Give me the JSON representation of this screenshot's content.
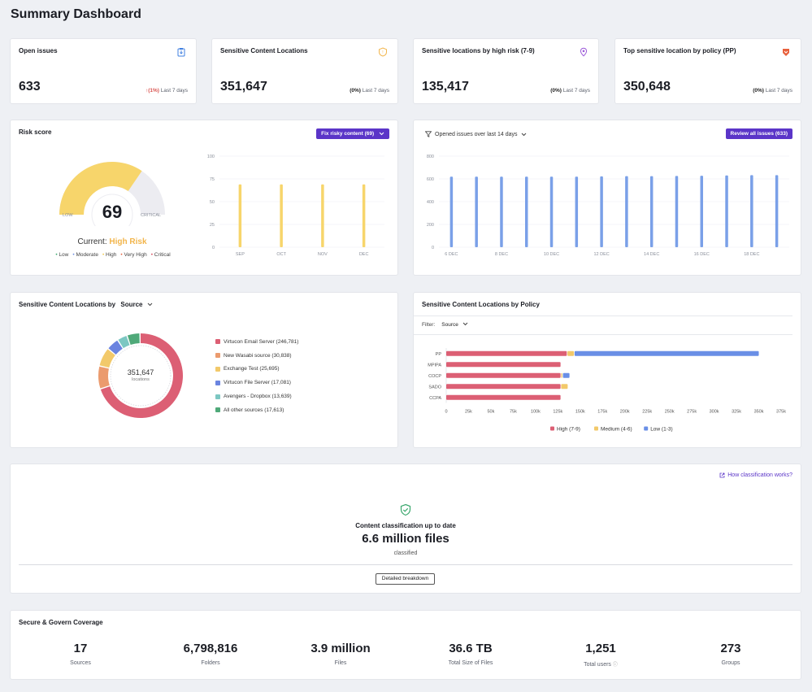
{
  "page": {
    "title": "Summary Dashboard"
  },
  "kpis": [
    {
      "title": "Open issues",
      "value": "633",
      "delta": "(1%)",
      "period": "Last 7 days",
      "trend": "up",
      "icon": "clipboard-icon",
      "icon_color": "#3f7fe0"
    },
    {
      "title": "Sensitive Content Locations",
      "value": "351,647",
      "delta": "(0%)",
      "period": "Last 7 days",
      "trend": "flat",
      "icon": "shield-icon",
      "icon_color": "#f2b54b"
    },
    {
      "title": "Sensitive locations by high risk (7-9)",
      "value": "135,417",
      "delta": "(0%)",
      "period": "Last 7 days",
      "trend": "flat",
      "icon": "location-pin-icon",
      "icon_color": "#9b59d9"
    },
    {
      "title": "Top sensitive location by policy (PP)",
      "value": "350,648",
      "delta": "(0%)",
      "period": "Last 7 days",
      "trend": "flat",
      "icon": "badge-icon",
      "icon_color": "#e8603c"
    }
  ],
  "risk": {
    "title": "Risk score",
    "button": "Fix risky content (69)",
    "score": "69",
    "current_label": "Current:",
    "current_value": "High Risk",
    "gauge_low": "LOW",
    "gauge_critical": "CRITICAL",
    "gauge_fraction": 0.69,
    "legend": [
      "Low",
      "Moderate",
      "High",
      "Very High",
      "Critical"
    ],
    "legend_colors": [
      "#3aa76d",
      "#6b8de0",
      "#f2c94c",
      "#e8603c",
      "#d84a5a"
    ],
    "bar_color": "#f7d56b"
  },
  "risk_chart_data": {
    "type": "bar",
    "categories": [
      "SEP",
      "OCT",
      "NOV",
      "DEC"
    ],
    "values": [
      69,
      69,
      69,
      69
    ],
    "ylim": [
      0,
      100
    ],
    "yticks": [
      "0",
      "25",
      "50",
      "75",
      "100"
    ]
  },
  "issues": {
    "filter_label": "Opened issues over last 14 days",
    "button": "Review all issues (633)",
    "bar_color": "#7aa0e8"
  },
  "issues_chart_data": {
    "type": "bar",
    "x": [
      "6 DEC",
      "7 DEC",
      "8 DEC",
      "9 DEC",
      "10 DEC",
      "11 DEC",
      "12 DEC",
      "13 DEC",
      "14 DEC",
      "15 DEC",
      "16 DEC",
      "17 DEC",
      "18 DEC",
      "19 DEC"
    ],
    "values": [
      620,
      620,
      620,
      620,
      620,
      620,
      622,
      624,
      624,
      626,
      628,
      630,
      633,
      633
    ],
    "xtick_labels": [
      "6 DEC",
      "8 DEC",
      "10 DEC",
      "12 DEC",
      "14 DEC",
      "16 DEC",
      "18 DEC"
    ],
    "ylim": [
      0,
      800
    ],
    "yticks": [
      "0",
      "200",
      "400",
      "600",
      "800"
    ]
  },
  "source": {
    "title": "Sensitive Content Locations by",
    "dropdown": "Source",
    "center_value": "351,647",
    "center_label": "locations"
  },
  "source_chart_data": {
    "type": "pie",
    "labels": [
      "Virtucon Email Server (246,781)",
      "New Wasabi source (30,838)",
      "Exchange Test (25,695)",
      "Virtucon File Server (17,081)",
      "Avengers - Dropbox (13,639)",
      "All other sources (17,613)"
    ],
    "values": [
      246781,
      30838,
      25695,
      17081,
      13639,
      17613
    ],
    "colors": [
      "#dc5f74",
      "#eb9b6e",
      "#f2c96a",
      "#6a84e0",
      "#7cc7c2",
      "#4fa979"
    ]
  },
  "policy": {
    "title": "Sensitive Content Locations by Policy",
    "filter_label": "Filter:",
    "filter_value": "Source"
  },
  "policy_chart_data": {
    "type": "bar",
    "orientation": "horizontal",
    "categories": [
      "PP",
      "MPIPA",
      "COCP",
      "SADO",
      "CCPA"
    ],
    "series": [
      {
        "name": "High (7-9)",
        "color": "#dc5f74",
        "values": [
          135000,
          128000,
          128000,
          128000,
          128000
        ]
      },
      {
        "name": "Medium (4-6)",
        "color": "#f2c96a",
        "values": [
          8000,
          0,
          2000,
          8000,
          0
        ]
      },
      {
        "name": "Low (1-3)",
        "color": "#6a8fe6",
        "values": [
          207000,
          0,
          8000,
          0,
          0
        ]
      }
    ],
    "xlim": [
      0,
      375000
    ],
    "xticks": [
      "0",
      "25k",
      "50k",
      "75k",
      "100k",
      "125k",
      "150k",
      "175k",
      "200k",
      "225k",
      "250k",
      "275k",
      "300k",
      "325k",
      "350k",
      "375k"
    ]
  },
  "classification": {
    "link": "How classification works?",
    "status": "Content classification up to date",
    "value": "6.6 million files",
    "sub": "classified",
    "button": "Detailed breakdown"
  },
  "coverage": {
    "title": "Secure & Govern Coverage",
    "stats": [
      {
        "value": "17",
        "label": "Sources"
      },
      {
        "value": "6,798,816",
        "label": "Folders"
      },
      {
        "value": "3.9 million",
        "label": "Files"
      },
      {
        "value": "36.6 TB",
        "label": "Total Size of Files"
      },
      {
        "value": "1,251",
        "label": "Total users"
      },
      {
        "value": "273",
        "label": "Groups"
      }
    ]
  }
}
